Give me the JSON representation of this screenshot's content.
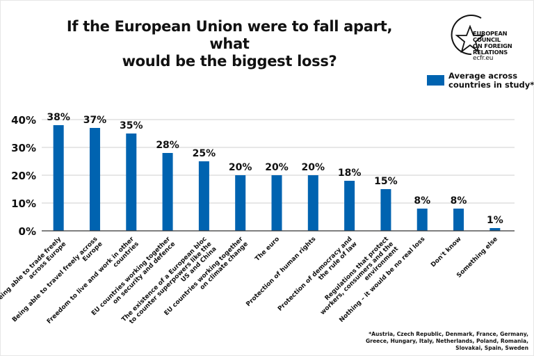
{
  "chart_data": {
    "type": "bar",
    "title": "If the European Union were to fall apart, what would be the biggest loss?",
    "xlabel": "",
    "ylabel": "",
    "ylim": [
      0,
      40
    ],
    "yticks": [
      0,
      10,
      20,
      30,
      40
    ],
    "ytick_labels": [
      "0%",
      "10%",
      "20%",
      "30%",
      "40%"
    ],
    "grid": true,
    "legend_position": "top-right",
    "categories": [
      [
        "Being able to trade freely",
        "across Europe"
      ],
      [
        "Being able to travel freely across",
        "Europe"
      ],
      [
        "Freedom to live and work in other",
        "countries"
      ],
      [
        "EU countries working together",
        "on security and defence"
      ],
      [
        "The existence of a European bloc",
        "to counter superpowers like the",
        "US and China"
      ],
      [
        "EU countries working together",
        "on climate change"
      ],
      [
        "The euro"
      ],
      [
        "Protection of human rights"
      ],
      [
        "Protection of democracy and",
        "the rule of law"
      ],
      [
        "Regulations that protect",
        "workers, consumers and the",
        "environment"
      ],
      [
        "Nothing – it would be no real loss"
      ],
      [
        "Don't know"
      ],
      [
        "Something else"
      ]
    ],
    "series": [
      {
        "name": "Average across countries in study*",
        "color": "#0063b0",
        "values": [
          38,
          37,
          35,
          28,
          25,
          20,
          20,
          20,
          18,
          15,
          8,
          8,
          1
        ],
        "labels": [
          "38%",
          "37%",
          "35%",
          "28%",
          "25%",
          "20%",
          "20%",
          "20%",
          "18%",
          "15%",
          "8%",
          "8%",
          "1%"
        ]
      }
    ]
  },
  "header": {
    "title_line1": "If the European Union were to fall apart, what",
    "title_line2": "would be the biggest loss?"
  },
  "logo": {
    "line1": "EUROPEAN",
    "line2": "COUNCIL",
    "line3": "ON FOREIGN",
    "line4": "RELATIONS",
    "url": "ecfr.eu"
  },
  "legend": {
    "label": "Average across countries in study*",
    "color": "#0063b0"
  },
  "footnote": {
    "line1": "*Austria, Czech Republic, Denmark, France, Germany,",
    "line2": "Greece, Hungary, Italy, Netherlands, Poland, Romania,",
    "line3": "Slovakai, Spain, Sweden"
  }
}
